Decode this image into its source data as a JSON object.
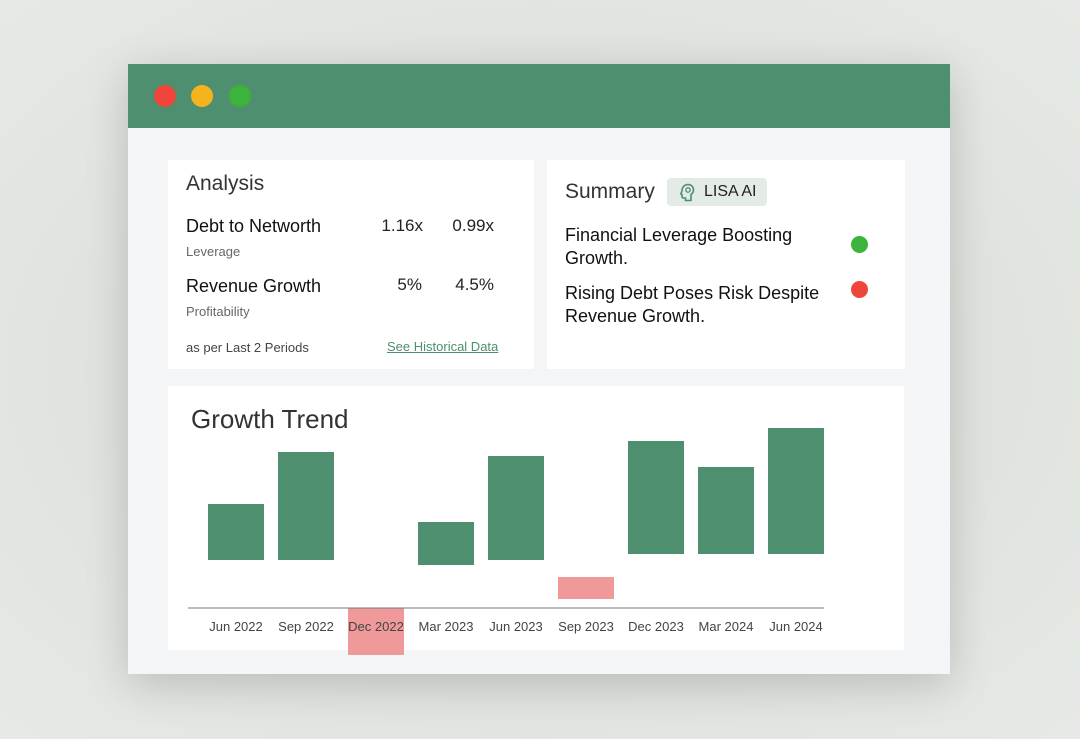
{
  "colors": {
    "accent": "#4d8f6f",
    "negative": "#f0999a",
    "status_green": "#3db33c",
    "status_red": "#f0453a"
  },
  "window": {
    "controls": [
      "close",
      "minimize",
      "maximize"
    ]
  },
  "analysis": {
    "title": "Analysis",
    "metrics": [
      {
        "name": "Debt to Networth",
        "category": "Leverage",
        "value1": "1.16x",
        "value2": "0.99x"
      },
      {
        "name": "Revenue Growth",
        "category": "Profitability",
        "value1": "5%",
        "value2": "4.5%"
      }
    ],
    "footnote": "as per Last 2 Periods",
    "link_label": "See Historical Data"
  },
  "summary": {
    "title": "Summary",
    "badge_label": "LISA AI",
    "badge_icon": "brain-head-icon",
    "items": [
      {
        "text": "Financial Leverage Boosting Growth.",
        "status": "positive"
      },
      {
        "text": "Rising Debt Poses Risk Despite Revenue Growth.",
        "status": "negative"
      }
    ]
  },
  "chart_data": {
    "type": "bar",
    "title": "Growth Trend",
    "xlabel": "",
    "ylabel": "",
    "categories": [
      "Jun 2022",
      "Sep 2022",
      "Dec 2022",
      "Mar 2023",
      "Jun 2023",
      "Sep 2023",
      "Dec 2023",
      "Mar 2024",
      "Jun 2024"
    ],
    "values": [
      56,
      108,
      -47,
      43,
      104,
      -22,
      113,
      87,
      126
    ],
    "series_colors": {
      "positive": "#4d8f6f",
      "negative": "#f0999a"
    },
    "axis_visible": false,
    "grid": false,
    "legend": "none"
  }
}
